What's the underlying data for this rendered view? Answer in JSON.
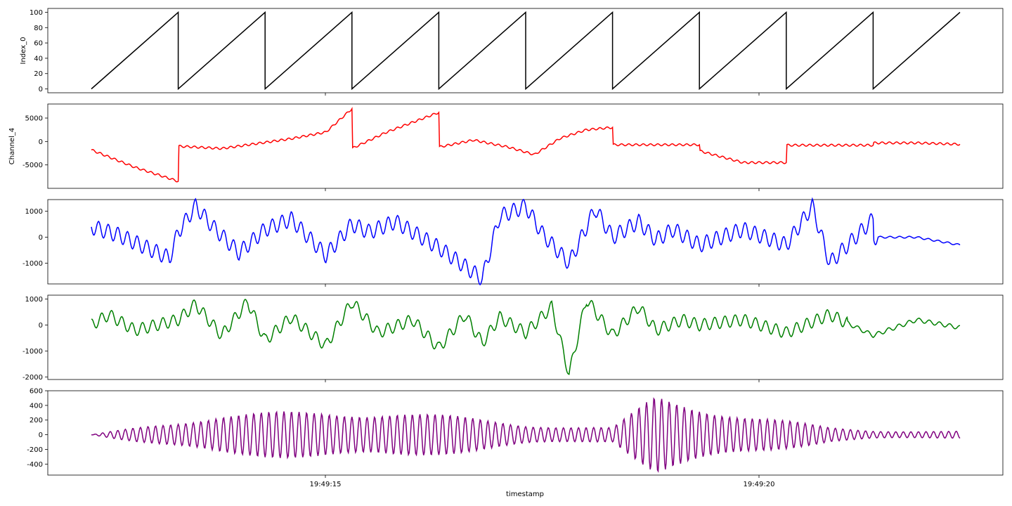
{
  "figure": {
    "xlabel": "timestamp",
    "x_ticks": [
      {
        "t": 15,
        "label": "19:49:15"
      },
      {
        "t": 20,
        "label": "19:49:20"
      }
    ],
    "xlim": [
      10.5,
      30.5
    ]
  },
  "chart_data": [
    {
      "type": "line",
      "ylabel": "Index_0",
      "color": "#000000",
      "ylim": [
        -5,
        105
      ],
      "yticks": [
        0,
        20,
        40,
        60,
        80,
        100
      ],
      "pattern": "sawtooth",
      "x": [
        10.5,
        11.5,
        11.5,
        12.5,
        12.5,
        13.5,
        13.5,
        14.5,
        14.5,
        15.5,
        15.5,
        16.5,
        16.5,
        17.5,
        17.5,
        18.5,
        18.5,
        19.5,
        19.5,
        20.5
      ],
      "values": [
        0,
        100,
        0,
        100,
        0,
        100,
        0,
        100,
        0,
        100,
        0,
        100,
        0,
        100,
        0,
        100,
        0,
        100,
        0,
        100
      ],
      "series": [
        {
          "values": [
            0,
            100,
            0,
            100,
            0,
            100,
            0,
            100,
            0,
            100,
            0,
            100,
            0,
            100,
            0,
            100,
            0,
            100,
            0,
            100
          ]
        }
      ]
    },
    {
      "type": "line",
      "ylabel": "Channel_4",
      "color": "#ff0000",
      "ylim": [
        -10000,
        8000
      ],
      "yticks": [
        -5000,
        0,
        5000
      ],
      "x": [
        10.5,
        11.0,
        11.5,
        11.5,
        12.0,
        12.5,
        12.8,
        13.2,
        13.5,
        13.5,
        13.9,
        14.5,
        14.5,
        14.9,
        15.3,
        15.6,
        15.9,
        16.2,
        16.5,
        16.5,
        17.0,
        17.5,
        17.5,
        18.0,
        18.5,
        18.5,
        19.0,
        19.5,
        19.5,
        20.0,
        20.5
      ],
      "values": [
        -1800,
        -5500,
        -8500,
        -1000,
        -1500,
        -200,
        600,
        2000,
        7000,
        -1500,
        2000,
        6200,
        -1200,
        300,
        -1200,
        -2800,
        700,
        2500,
        3000,
        -700,
        -700,
        -700,
        -2000,
        -4500,
        -4500,
        -800,
        -800,
        -800,
        -300,
        -300,
        -600
      ]
    },
    {
      "type": "line",
      "ylabel": "",
      "color": "#0000ff",
      "ylim": [
        -1800,
        1450
      ],
      "yticks": [
        -1000,
        0,
        1000
      ],
      "x": [
        10.5,
        10.8,
        11.2,
        11.4,
        11.5,
        11.7,
        11.9,
        12.2,
        12.5,
        12.8,
        13.2,
        13.5,
        13.7,
        14.0,
        14.5,
        15.0,
        15.2,
        15.5,
        15.7,
        16.0,
        16.3,
        16.5,
        16.8,
        17.0,
        17.2,
        17.5,
        18.0,
        18.5,
        18.8,
        19.0,
        19.5,
        19.5,
        20.0,
        20.5
      ],
      "values": [
        400,
        100,
        -500,
        -800,
        200,
        1200,
        400,
        -600,
        300,
        700,
        -700,
        500,
        200,
        600,
        -400,
        -1600,
        800,
        1200,
        100,
        -1000,
        1100,
        0,
        600,
        -100,
        300,
        -300,
        300,
        -300,
        1200,
        -1000,
        700,
        0,
        0,
        -300
      ]
    },
    {
      "type": "line",
      "ylabel": "",
      "color": "#008000",
      "ylim": [
        -2100,
        1150
      ],
      "yticks": [
        -2000,
        -1000,
        0,
        1000
      ],
      "x": [
        10.5,
        10.7,
        11.0,
        11.5,
        11.7,
        12.0,
        12.3,
        12.5,
        12.8,
        13.2,
        13.5,
        13.8,
        14.2,
        14.5,
        14.8,
        15.0,
        15.2,
        15.5,
        15.8,
        16.0,
        16.2,
        16.5,
        16.8,
        17.0,
        17.3,
        17.5,
        18.0,
        18.5,
        19.0,
        19.5,
        20.0,
        20.5
      ],
      "values": [
        0,
        400,
        -200,
        200,
        800,
        -400,
        900,
        -600,
        300,
        -800,
        900,
        -300,
        200,
        -900,
        400,
        -700,
        300,
        -300,
        700,
        -1900,
        1000,
        -400,
        700,
        -200,
        200,
        0,
        200,
        -300,
        400,
        -400,
        200,
        -100
      ]
    },
    {
      "type": "line",
      "ylabel": "",
      "color": "#800080",
      "ylim": [
        -550,
        600
      ],
      "yticks": [
        -400,
        -200,
        0,
        200,
        400,
        600
      ],
      "pattern": "oscillation",
      "x": [
        10.5,
        12.0,
        14.0,
        15.5,
        16.5,
        17.0,
        18.0,
        19.0,
        19.5,
        20.5
      ],
      "values": [
        0,
        300,
        350,
        150,
        100,
        550,
        300,
        100,
        60,
        50
      ]
    }
  ]
}
